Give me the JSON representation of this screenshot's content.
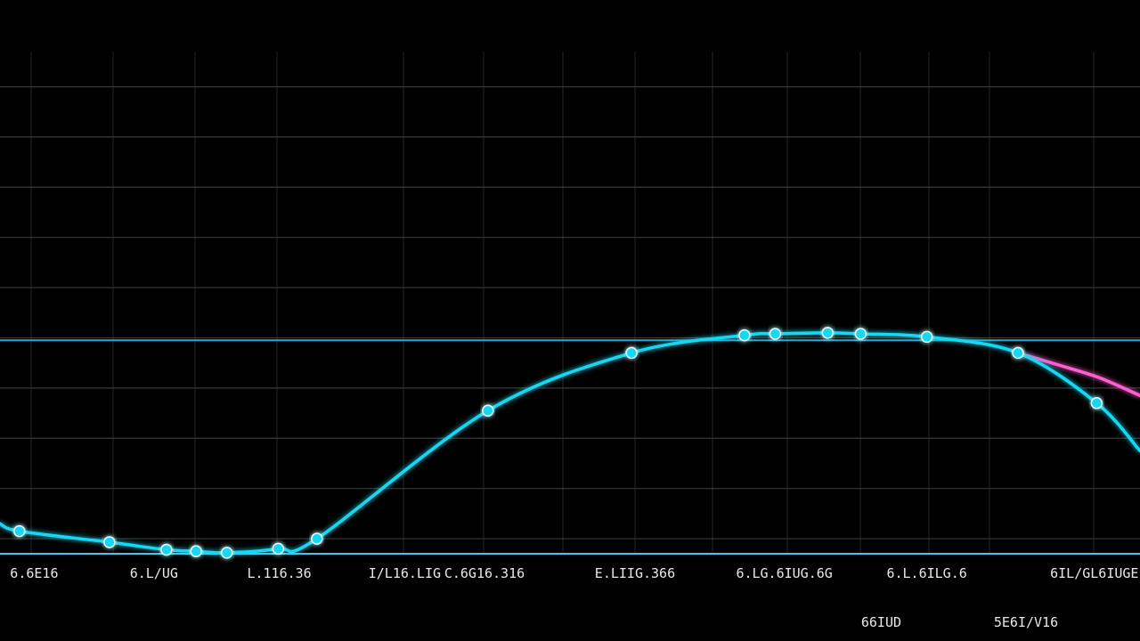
{
  "colors": {
    "background": "#000000",
    "primary_series": "#16d8f2",
    "secondary_series": "#ff5fd0",
    "reference_line": "#2fb8e6"
  },
  "chart_data": {
    "type": "line",
    "title": "",
    "xlabel": "",
    "ylabel": "",
    "grid": true,
    "legend": "none",
    "xlim": [
      0,
      100
    ],
    "ylim": [
      0,
      10
    ],
    "horizontal_gridlines": [
      0.3,
      1.3,
      2.3,
      3.3,
      4.3,
      5.3,
      6.3,
      7.3,
      8.3,
      9.3
    ],
    "reference_line_y": 4.25,
    "x_tick_labels": [
      {
        "x": 3,
        "text": "6.6E16"
      },
      {
        "x": 13.5,
        "text": "6.L/UG"
      },
      {
        "x": 24.5,
        "text": "L.116.36"
      },
      {
        "x": 35.5,
        "text": "I/L16.LIG"
      },
      {
        "x": 42.5,
        "text": "C.6G16.316"
      },
      {
        "x": 55.7,
        "text": "E.LIIG.366"
      },
      {
        "x": 68.8,
        "text": "6.LG.6IUG.6G"
      },
      {
        "x": 81.3,
        "text": "6.L.6ILG.6"
      },
      {
        "x": 96,
        "text": "6IL/GL6IUGE"
      }
    ],
    "sub_labels": [
      {
        "x": 77.3,
        "text": "66IUD"
      },
      {
        "x": 90,
        "text": "5E6I/V16"
      }
    ],
    "series": [
      {
        "color": "#16d8f2",
        "x": [
          0,
          1.7,
          9.6,
          14.6,
          17.2,
          19.9,
          24.4,
          27.8,
          42.8,
          55.4,
          65.3,
          68.0,
          72.6,
          75.5,
          81.3,
          89.3,
          96.2,
          100
        ],
        "y": [
          0.6,
          0.45,
          0.23,
          0.08,
          0.05,
          0.02,
          0.1,
          0.3,
          2.85,
          4.0,
          4.35,
          4.38,
          4.4,
          4.38,
          4.32,
          4.0,
          3.0,
          2.05
        ],
        "markers": [
          false,
          true,
          true,
          true,
          true,
          true,
          true,
          true,
          true,
          true,
          true,
          true,
          true,
          true,
          true,
          true,
          true,
          false
        ]
      },
      {
        "color": "#ff5fd0",
        "x": [
          89.3,
          93,
          96.5,
          100
        ],
        "y": [
          4.0,
          3.75,
          3.5,
          3.15
        ],
        "markers": [
          false,
          false,
          false,
          false
        ]
      }
    ]
  }
}
